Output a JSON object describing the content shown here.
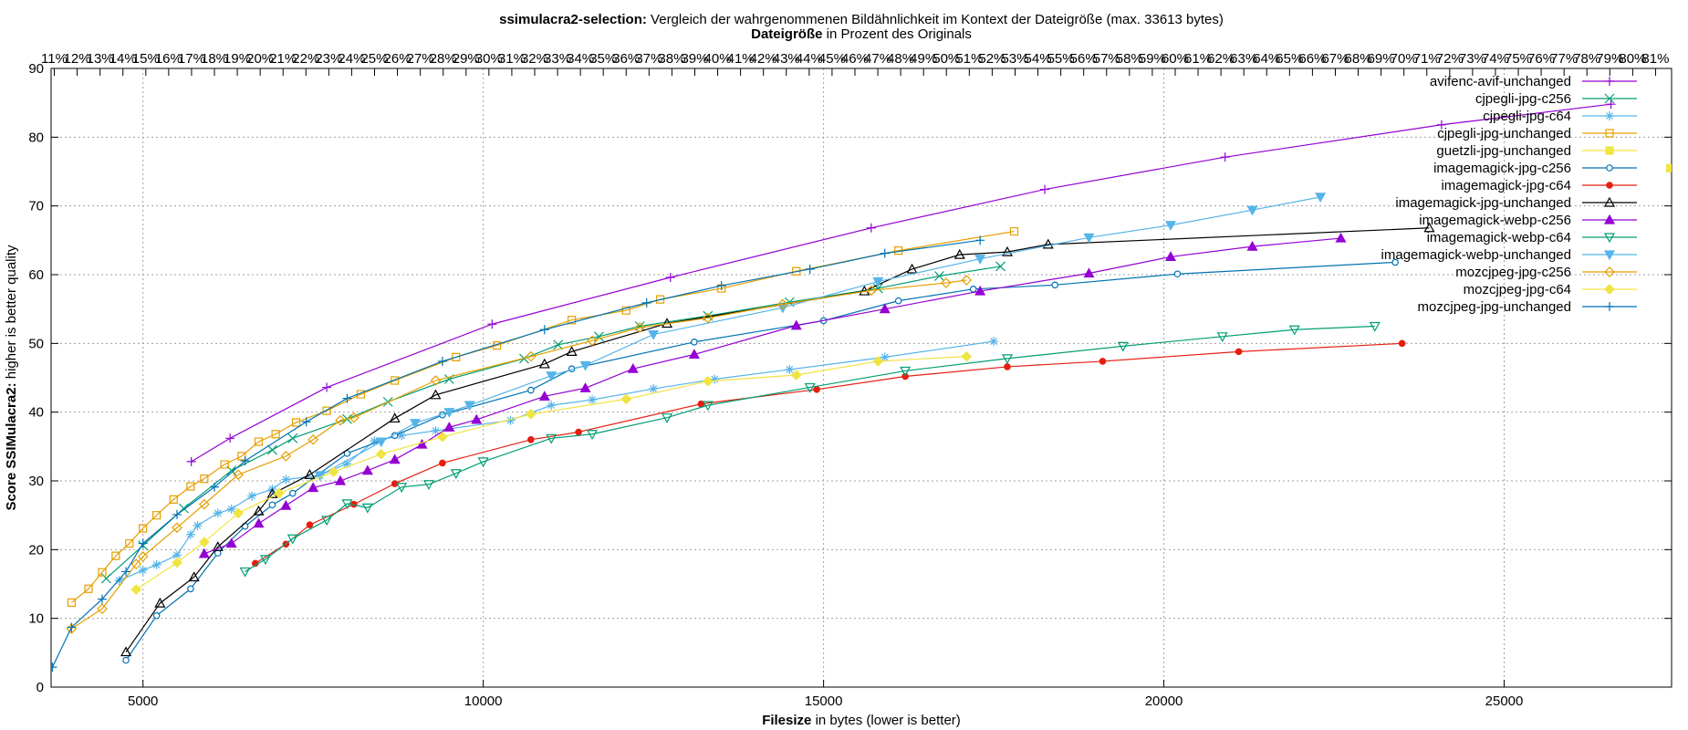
{
  "chart_data": {
    "type": "line",
    "title_prefix": "ssimulacra2-selection:",
    "title": "Vergleich der wahrgenommenen Bildähnlichkeit im Kontext der Dateigröße (max. 33613 bytes)",
    "x2label_prefix": "Dateigröße",
    "x2label": "in Prozent des Originals",
    "xlabel_prefix": "Filesize",
    "xlabel": "in bytes (lower is better)",
    "ylabel_prefix": "Score SSIMulacra2:",
    "ylabel": "higher is better quality",
    "xlim": [
      3650,
      27460
    ],
    "ylim": [
      0,
      90
    ],
    "xticks": [
      5000,
      10000,
      15000,
      20000,
      25000
    ],
    "yticks": [
      0,
      10,
      20,
      30,
      40,
      50,
      60,
      70,
      80,
      90
    ],
    "x2lim": [
      10.86,
      81.7
    ],
    "x2ticks": [
      {
        "value": 11,
        "label": "11%"
      },
      {
        "value": 12,
        "label": "12%"
      },
      {
        "value": 13,
        "label": "13%"
      },
      {
        "value": 14,
        "label": "14%"
      },
      {
        "value": 15,
        "label": "15%"
      },
      {
        "value": 16,
        "label": "16%"
      },
      {
        "value": 17,
        "label": "17%"
      },
      {
        "value": 18,
        "label": "18%"
      },
      {
        "value": 19,
        "label": "19%"
      },
      {
        "value": 20,
        "label": "20%"
      },
      {
        "value": 21,
        "label": "21%"
      },
      {
        "value": 22,
        "label": "22%"
      },
      {
        "value": 23,
        "label": "23%"
      },
      {
        "value": 24,
        "label": "24%"
      },
      {
        "value": 25,
        "label": "25%"
      },
      {
        "value": 26,
        "label": "26%"
      },
      {
        "value": 27,
        "label": "27%"
      },
      {
        "value": 28,
        "label": "28%"
      },
      {
        "value": 29,
        "label": "29%"
      },
      {
        "value": 30,
        "label": "30%"
      },
      {
        "value": 31,
        "label": "31%"
      },
      {
        "value": 32,
        "label": "32%"
      },
      {
        "value": 33,
        "label": "33%"
      },
      {
        "value": 34,
        "label": "34%"
      },
      {
        "value": 35,
        "label": "35%"
      },
      {
        "value": 36,
        "label": "36%"
      },
      {
        "value": 37,
        "label": "37%"
      },
      {
        "value": 38,
        "label": "38%"
      },
      {
        "value": 39,
        "label": "39%"
      },
      {
        "value": 40,
        "label": "40%"
      },
      {
        "value": 41,
        "label": "41%"
      },
      {
        "value": 42,
        "label": "42%"
      },
      {
        "value": 43,
        "label": "43%"
      },
      {
        "value": 44,
        "label": "44%"
      },
      {
        "value": 45,
        "label": "45%"
      },
      {
        "value": 46,
        "label": "46%"
      },
      {
        "value": 47,
        "label": "47%"
      },
      {
        "value": 48,
        "label": "48%"
      },
      {
        "value": 49,
        "label": "49%"
      },
      {
        "value": 50,
        "label": "50%"
      },
      {
        "value": 51,
        "label": "51%"
      },
      {
        "value": 52,
        "label": "52%"
      },
      {
        "value": 53,
        "label": "53%"
      },
      {
        "value": 54,
        "label": "54%"
      },
      {
        "value": 55,
        "label": "55%"
      },
      {
        "value": 56,
        "label": "56%"
      },
      {
        "value": 57,
        "label": "57%"
      },
      {
        "value": 58,
        "label": "58%"
      },
      {
        "value": 59,
        "label": "59%"
      },
      {
        "value": 60,
        "label": "60%"
      },
      {
        "value": 61,
        "label": "61%"
      },
      {
        "value": 62,
        "label": "62%"
      },
      {
        "value": 63,
        "label": "63%"
      },
      {
        "value": 64,
        "label": "64%"
      },
      {
        "value": 65,
        "label": "65%"
      },
      {
        "value": 66,
        "label": "66%"
      },
      {
        "value": 67,
        "label": "67%"
      },
      {
        "value": 68,
        "label": "68%"
      },
      {
        "value": 69,
        "label": "69%"
      },
      {
        "value": 70,
        "label": "70%"
      },
      {
        "value": 71,
        "label": "71%"
      },
      {
        "value": 72,
        "label": "72%"
      },
      {
        "value": 73,
        "label": "73%"
      },
      {
        "value": 74,
        "label": "74%"
      },
      {
        "value": 75,
        "label": "75%"
      },
      {
        "value": 76,
        "label": "76%"
      },
      {
        "value": 77,
        "label": "77%"
      },
      {
        "value": 78,
        "label": "78%"
      },
      {
        "value": 79,
        "label": "79%"
      },
      {
        "value": 80,
        "label": "80%"
      },
      {
        "value": 81,
        "label": "81%"
      }
    ],
    "grid": true,
    "legend": "top-right",
    "series": [
      {
        "name": "avifenc-avif-unchanged",
        "color": "#9400d3",
        "marker": "plus",
        "x": [
          5710,
          6280,
          7700,
          10130,
          12750,
          15700,
          18250,
          20900,
          24080,
          26570
        ],
        "values": [
          32.8,
          36.2,
          43.6,
          52.8,
          59.6,
          66.8,
          72.4,
          77.1,
          81.8,
          84.8
        ]
      },
      {
        "name": "cjpegli-jpg-c256",
        "color": "#009e73",
        "marker": "cross",
        "x": [
          4460,
          5000,
          5600,
          6300,
          6900,
          7200,
          8000,
          8600,
          9500,
          10600,
          11100,
          11700,
          12300,
          13300,
          14500,
          15800,
          16700,
          17600
        ],
        "values": [
          15.8,
          20.6,
          26.0,
          31.5,
          34.5,
          36.2,
          39.0,
          41.5,
          44.8,
          47.8,
          49.8,
          51.0,
          52.5,
          54.0,
          56.0,
          58.0,
          59.8,
          61.2
        ]
      },
      {
        "name": "cjpegli-jpg-c64",
        "color": "#56b4e9",
        "marker": "star",
        "x": [
          4650,
          5000,
          5200,
          5500,
          5700,
          5800,
          6100,
          6300,
          6600,
          6900,
          7100,
          7600,
          8000,
          8400,
          8800,
          9300,
          10400,
          11000,
          11600,
          12500,
          13400,
          14500,
          15900,
          17500
        ],
        "values": [
          15.5,
          17.0,
          17.8,
          19.2,
          22.2,
          23.5,
          25.3,
          25.9,
          27.8,
          28.8,
          30.2,
          30.8,
          32.5,
          35.8,
          36.6,
          37.3,
          38.8,
          41.0,
          41.8,
          43.4,
          44.8,
          46.2,
          48.0,
          50.3
        ]
      },
      {
        "name": "cjpegli-jpg-unchanged",
        "color": "#e69f00",
        "marker": "square",
        "x": [
          3950,
          4200,
          4400,
          4600,
          4800,
          5000,
          5200,
          5450,
          5700,
          5900,
          6200,
          6450,
          6700,
          6950,
          7250,
          7700,
          8200,
          8700,
          9600,
          10200,
          11300,
          12100,
          12600,
          13500,
          14600,
          16100,
          17800
        ],
        "values": [
          12.3,
          14.3,
          16.7,
          19.1,
          20.9,
          23.1,
          25.0,
          27.3,
          29.2,
          30.3,
          32.4,
          33.6,
          35.7,
          36.8,
          38.5,
          40.2,
          42.6,
          44.6,
          48.0,
          49.7,
          53.4,
          54.8,
          56.4,
          58.0,
          60.5,
          63.5,
          66.3
        ]
      },
      {
        "name": "guetzli-jpg-unchanged",
        "color": "#f0e442",
        "marker": "filled-square",
        "x": [
          27440
        ],
        "values": [
          75.5
        ]
      },
      {
        "name": "imagemagick-jpg-c256",
        "color": "#0072b2",
        "marker": "circle",
        "x": [
          4750,
          5200,
          5700,
          6100,
          6500,
          6900,
          7200,
          8000,
          8700,
          9400,
          10700,
          11300,
          13100,
          15000,
          16100,
          17200,
          18400,
          20200,
          23400
        ],
        "values": [
          3.9,
          10.4,
          14.3,
          19.5,
          23.4,
          26.5,
          28.2,
          34.0,
          36.6,
          39.6,
          43.2,
          46.3,
          50.2,
          53.3,
          56.2,
          57.9,
          58.5,
          60.1,
          61.8
        ]
      },
      {
        "name": "imagemagick-jpg-c64",
        "color": "#e51e10",
        "marker": "filled-circle",
        "x": [
          6650,
          7100,
          7450,
          8100,
          8700,
          9400,
          10700,
          11400,
          13200,
          14900,
          16200,
          17700,
          19100,
          21100,
          23500
        ],
        "values": [
          18.0,
          20.8,
          23.6,
          26.6,
          29.6,
          32.6,
          36.0,
          37.1,
          41.2,
          43.3,
          45.2,
          46.6,
          47.4,
          48.8,
          50.0
        ]
      },
      {
        "name": "imagemagick-jpg-unchanged",
        "color": "#000000",
        "marker": "triangle",
        "x": [
          4750,
          5250,
          5750,
          6100,
          6700,
          6900,
          7450,
          8700,
          9300,
          10900,
          11300,
          12700,
          15600,
          16300,
          17000,
          17700,
          18300,
          23900
        ],
        "values": [
          5.1,
          12.2,
          16.0,
          20.4,
          25.6,
          28.1,
          30.9,
          39.1,
          42.5,
          47.0,
          48.8,
          52.9,
          57.6,
          60.8,
          62.9,
          63.3,
          64.4,
          66.8
        ]
      },
      {
        "name": "imagemagick-webp-c256",
        "color": "#9400d3",
        "marker": "filled-triangle",
        "x": [
          5900,
          6300,
          6700,
          7100,
          7500,
          7900,
          8300,
          8700,
          9100,
          9500,
          9900,
          10900,
          11500,
          12200,
          13100,
          14600,
          15900,
          17300,
          18900,
          20100,
          21300,
          22600
        ],
        "values": [
          19.4,
          20.9,
          23.8,
          26.4,
          29.0,
          30.0,
          31.5,
          33.1,
          35.3,
          37.8,
          38.9,
          42.3,
          43.5,
          46.3,
          48.4,
          52.6,
          55.0,
          57.6,
          60.2,
          62.6,
          64.1,
          65.3
        ]
      },
      {
        "name": "imagemagick-webp-c64",
        "color": "#009e73",
        "marker": "down-triangle",
        "x": [
          6500,
          6800,
          7200,
          7700,
          8000,
          8300,
          8800,
          9200,
          9600,
          10000,
          11000,
          11600,
          12700,
          13300,
          14800,
          16200,
          17700,
          19400,
          20860,
          21920,
          23100
        ],
        "values": [
          16.8,
          18.6,
          21.6,
          24.3,
          26.7,
          26.1,
          29.1,
          29.5,
          31.1,
          32.8,
          36.2,
          36.8,
          39.2,
          41.0,
          43.6,
          46.0,
          47.8,
          49.6,
          51.0,
          52.0,
          52.5
        ]
      },
      {
        "name": "imagemagick-webp-unchanged",
        "color": "#56b4e9",
        "marker": "filled-down-triangle",
        "x": [
          7600,
          8500,
          9000,
          9500,
          9800,
          11000,
          11500,
          12500,
          14400,
          15800,
          17300,
          18900,
          20100,
          21300,
          22300
        ],
        "values": [
          30.8,
          35.7,
          38.4,
          40.0,
          41.0,
          45.3,
          46.8,
          51.3,
          55.2,
          59.0,
          62.3,
          65.4,
          67.2,
          69.4,
          71.3
        ]
      },
      {
        "name": "mozcjpeg-jpg-c256",
        "color": "#e69f00",
        "marker": "diamond",
        "x": [
          3950,
          4400,
          4900,
          5000,
          5500,
          5900,
          6400,
          7100,
          7500,
          7900,
          8100,
          9300,
          10700,
          11600,
          12300,
          13300,
          14400,
          15700,
          16800,
          17100
        ],
        "values": [
          8.5,
          11.4,
          17.9,
          19.0,
          23.2,
          26.6,
          30.9,
          33.6,
          36.0,
          38.8,
          39.2,
          44.6,
          48.1,
          50.4,
          52.3,
          53.7,
          55.7,
          57.7,
          58.8,
          59.2
        ]
      },
      {
        "name": "mozcjpeg-jpg-c64",
        "color": "#f0e442",
        "marker": "filled-diamond",
        "x": [
          4900,
          5500,
          5900,
          6400,
          7000,
          7800,
          8500,
          9400,
          10700,
          12100,
          13300,
          14600,
          15800,
          17100
        ],
        "values": [
          14.2,
          18.1,
          21.1,
          25.3,
          28.2,
          31.3,
          33.9,
          36.4,
          39.7,
          41.9,
          44.5,
          45.4,
          47.4,
          48.1
        ]
      },
      {
        "name": "mozcjpeg-jpg-unchanged",
        "color": "#0072b2",
        "marker": "plus",
        "x": [
          3670,
          3950,
          4400,
          4750,
          5000,
          5500,
          6050,
          6500,
          7400,
          8000,
          9400,
          10900,
          12400,
          13500,
          14800,
          15900,
          17300
        ],
        "values": [
          2.9,
          8.7,
          12.8,
          16.8,
          20.9,
          25.1,
          29.1,
          32.9,
          38.6,
          42.0,
          47.4,
          52.0,
          55.9,
          58.4,
          60.8,
          63.1,
          65.0
        ]
      }
    ]
  }
}
